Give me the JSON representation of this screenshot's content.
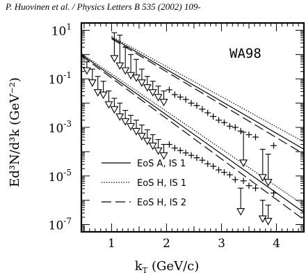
{
  "header": "P. Huovinen et al. / Physics Letters B 535 (2002) 109-",
  "chart_data": {
    "type": "scatter",
    "panel_label": "WA98",
    "xlabel_main": "k",
    "xlabel_sub": "T",
    "xlabel_unit": "(GeV/c)",
    "ylabel": "Ed³N/d³k  (GeV⁻²)",
    "xlim": [
      0.45,
      4.5
    ],
    "ylim_log10": [
      -7.3,
      1.3
    ],
    "yscale": "log",
    "x_ticks": [
      "1",
      "2",
      "3",
      "4"
    ],
    "y_ticks": [
      {
        "base": "10",
        "exp": "1"
      },
      {
        "base": "10",
        "exp": "-1"
      },
      {
        "base": "10",
        "exp": "-3"
      },
      {
        "base": "10",
        "exp": "-5"
      },
      {
        "base": "10",
        "exp": "-7"
      }
    ],
    "legend": [
      {
        "label": "EoS A,  IS 1",
        "style": "solid"
      },
      {
        "label": "EoS H,  IS 1",
        "style": "dotted"
      },
      {
        "label": "EoS H,  IS 2",
        "style": "dashed"
      }
    ],
    "theory_curves": [
      {
        "group": "upper",
        "style": "solid",
        "x": [
          1.0,
          4.5
        ],
        "log10y": [
          0.7,
          -3.9
        ]
      },
      {
        "group": "upper",
        "style": "dotted",
        "x": [
          1.0,
          4.5
        ],
        "log10y": [
          0.75,
          -3.6
        ]
      },
      {
        "group": "upper",
        "style": "dashed",
        "x": [
          1.0,
          4.5
        ],
        "log10y": [
          0.65,
          -4.1
        ]
      },
      {
        "group": "lower",
        "style": "solid",
        "x": [
          0.45,
          4.5
        ],
        "log10y": [
          0.0,
          -6.5
        ]
      },
      {
        "group": "lower",
        "style": "dotted",
        "x": [
          0.45,
          4.5
        ],
        "log10y": [
          0.05,
          -6.2
        ]
      },
      {
        "group": "lower",
        "style": "dashed",
        "x": [
          0.45,
          4.5
        ],
        "log10y": [
          -0.05,
          -6.8
        ]
      }
    ],
    "upper_limits_upper": [
      {
        "x": 1.05,
        "top": 0.9,
        "arrow": -0.3
      },
      {
        "x": 1.15,
        "top": 0.8,
        "arrow": -0.6
      },
      {
        "x": 1.25,
        "top": 0.3,
        "arrow": -0.8
      },
      {
        "x": 1.35,
        "top": 0.0,
        "arrow": -1.0
      },
      {
        "x": 1.45,
        "top": -0.2,
        "arrow": -1.1
      },
      {
        "x": 1.55,
        "top": -0.6,
        "arrow": -1.3
      },
      {
        "x": 1.65,
        "top": -0.9,
        "arrow": -1.5
      },
      {
        "x": 1.75,
        "top": -1.1,
        "arrow": -1.7
      },
      {
        "x": 1.85,
        "top": -1.3,
        "arrow": -1.9
      },
      {
        "x": 1.95,
        "top": -1.5,
        "arrow": -2.1
      },
      {
        "x": 3.4,
        "top": -3.2,
        "arrow": -4.6
      },
      {
        "x": 3.75,
        "top": -3.9,
        "arrow": -5.2
      },
      {
        "x": 3.85,
        "top": -4.1,
        "arrow": -5.4
      }
    ],
    "upper_limits_lower": [
      {
        "x": 0.55,
        "top": -0.3,
        "arrow": -0.8
      },
      {
        "x": 0.65,
        "top": -0.6,
        "arrow": -1.3
      },
      {
        "x": 0.75,
        "top": -0.9,
        "arrow": -1.7
      },
      {
        "x": 0.85,
        "top": -1.1,
        "arrow": -1.8
      },
      {
        "x": 0.95,
        "top": -1.5,
        "arrow": -2.2
      },
      {
        "x": 1.05,
        "top": -1.8,
        "arrow": -2.4
      },
      {
        "x": 1.15,
        "top": -2.0,
        "arrow": -2.7
      },
      {
        "x": 1.25,
        "top": -2.3,
        "arrow": -2.9
      },
      {
        "x": 1.35,
        "top": -2.5,
        "arrow": -3.1
      },
      {
        "x": 1.45,
        "top": -2.7,
        "arrow": -3.3
      },
      {
        "x": 1.55,
        "top": -2.9,
        "arrow": -3.5
      },
      {
        "x": 1.65,
        "top": -3.1,
        "arrow": -3.7
      },
      {
        "x": 1.75,
        "top": -3.3,
        "arrow": -3.9
      },
      {
        "x": 1.85,
        "top": -3.5,
        "arrow": -4.1
      },
      {
        "x": 1.95,
        "top": -3.7,
        "arrow": -4.3
      },
      {
        "x": 3.35,
        "top": -5.5,
        "arrow": -6.6
      },
      {
        "x": 3.75,
        "top": -6.0,
        "arrow": -6.9
      },
      {
        "x": 3.85,
        "top": -6.2,
        "arrow": -7.0
      }
    ],
    "points_upper": [
      {
        "x": 2.05,
        "log10y": -1.45
      },
      {
        "x": 2.15,
        "log10y": -1.65
      },
      {
        "x": 2.25,
        "log10y": -1.75
      },
      {
        "x": 2.35,
        "log10y": -1.85
      },
      {
        "x": 2.45,
        "log10y": -2.0
      },
      {
        "x": 2.55,
        "log10y": -2.1
      },
      {
        "x": 2.65,
        "log10y": -2.25
      },
      {
        "x": 2.75,
        "log10y": -2.4
      },
      {
        "x": 2.85,
        "log10y": -2.55
      },
      {
        "x": 2.95,
        "log10y": -2.7
      },
      {
        "x": 3.05,
        "log10y": -2.8
      },
      {
        "x": 3.15,
        "log10y": -2.95
      },
      {
        "x": 3.25,
        "log10y": -3.0
      },
      {
        "x": 3.35,
        "log10y": -3.15
      },
      {
        "x": 3.5,
        "log10y": -3.3
      },
      {
        "x": 3.62,
        "log10y": -3.4
      },
      {
        "x": 3.95,
        "log10y": -3.75
      }
    ],
    "points_lower": [
      {
        "x": 2.05,
        "log10y": -3.7
      },
      {
        "x": 2.15,
        "log10y": -3.85
      },
      {
        "x": 2.25,
        "log10y": -3.95
      },
      {
        "x": 2.35,
        "log10y": -4.05
      },
      {
        "x": 2.45,
        "log10y": -4.15
      },
      {
        "x": 2.55,
        "log10y": -4.25
      },
      {
        "x": 2.65,
        "log10y": -4.35
      },
      {
        "x": 2.75,
        "log10y": -4.5
      },
      {
        "x": 2.85,
        "log10y": -4.6
      },
      {
        "x": 2.95,
        "log10y": -4.75
      },
      {
        "x": 3.05,
        "log10y": -4.85
      },
      {
        "x": 3.15,
        "log10y": -4.95
      },
      {
        "x": 3.25,
        "log10y": -5.15
      },
      {
        "x": 3.4,
        "log10y": -5.2
      },
      {
        "x": 3.5,
        "log10y": -5.4
      },
      {
        "x": 3.62,
        "log10y": -5.5
      },
      {
        "x": 3.95,
        "log10y": -5.7
      }
    ]
  }
}
